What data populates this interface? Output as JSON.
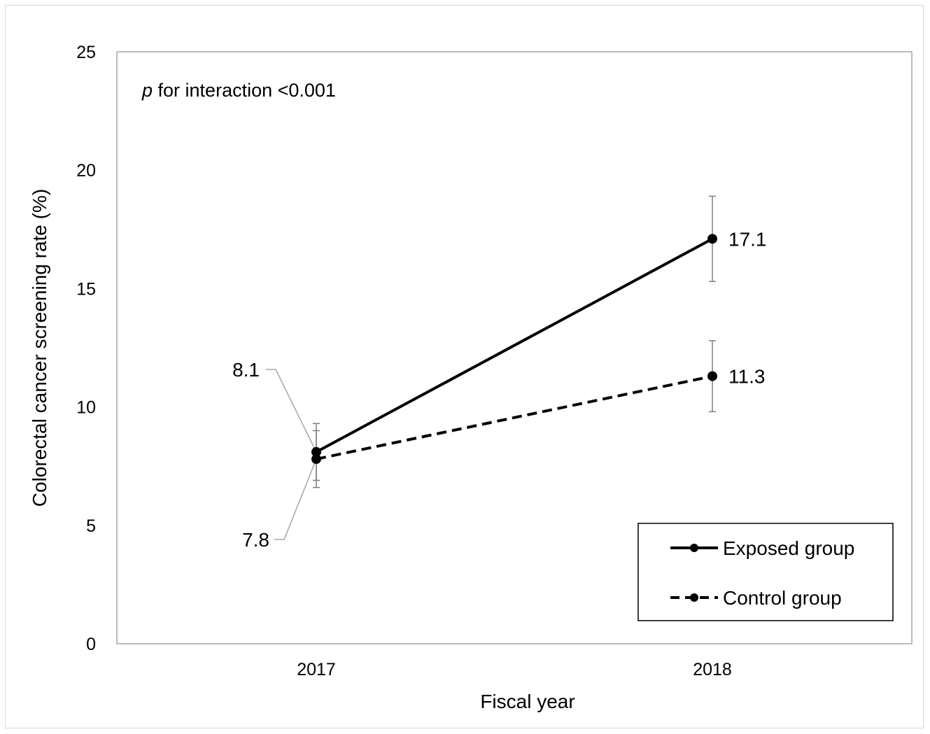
{
  "chart_data": {
    "type": "line",
    "categories": [
      "2017",
      "2018"
    ],
    "xlabel": "Fiscal year",
    "ylabel": "Colorectal cancer screening rate (%)",
    "ylim": [
      0,
      25
    ],
    "yticks": [
      "0",
      "5",
      "10",
      "15",
      "20",
      "25"
    ],
    "grid": false,
    "legend_position": "bottom-right",
    "annotation": {
      "italic_part": "p",
      "rest": " for interaction <0.001"
    },
    "series": [
      {
        "name": "Exposed group",
        "style": "solid",
        "color": "#000000",
        "values": [
          8.1,
          17.1
        ],
        "error_low": [
          6.9,
          15.3
        ],
        "error_high": [
          9.3,
          18.9
        ],
        "labels": [
          "8.1",
          "17.1"
        ]
      },
      {
        "name": "Control group",
        "style": "dashed",
        "color": "#000000",
        "values": [
          7.8,
          11.3
        ],
        "error_low": [
          6.6,
          9.8
        ],
        "error_high": [
          9.0,
          12.8
        ],
        "labels": [
          "7.8",
          "11.3"
        ]
      }
    ]
  }
}
